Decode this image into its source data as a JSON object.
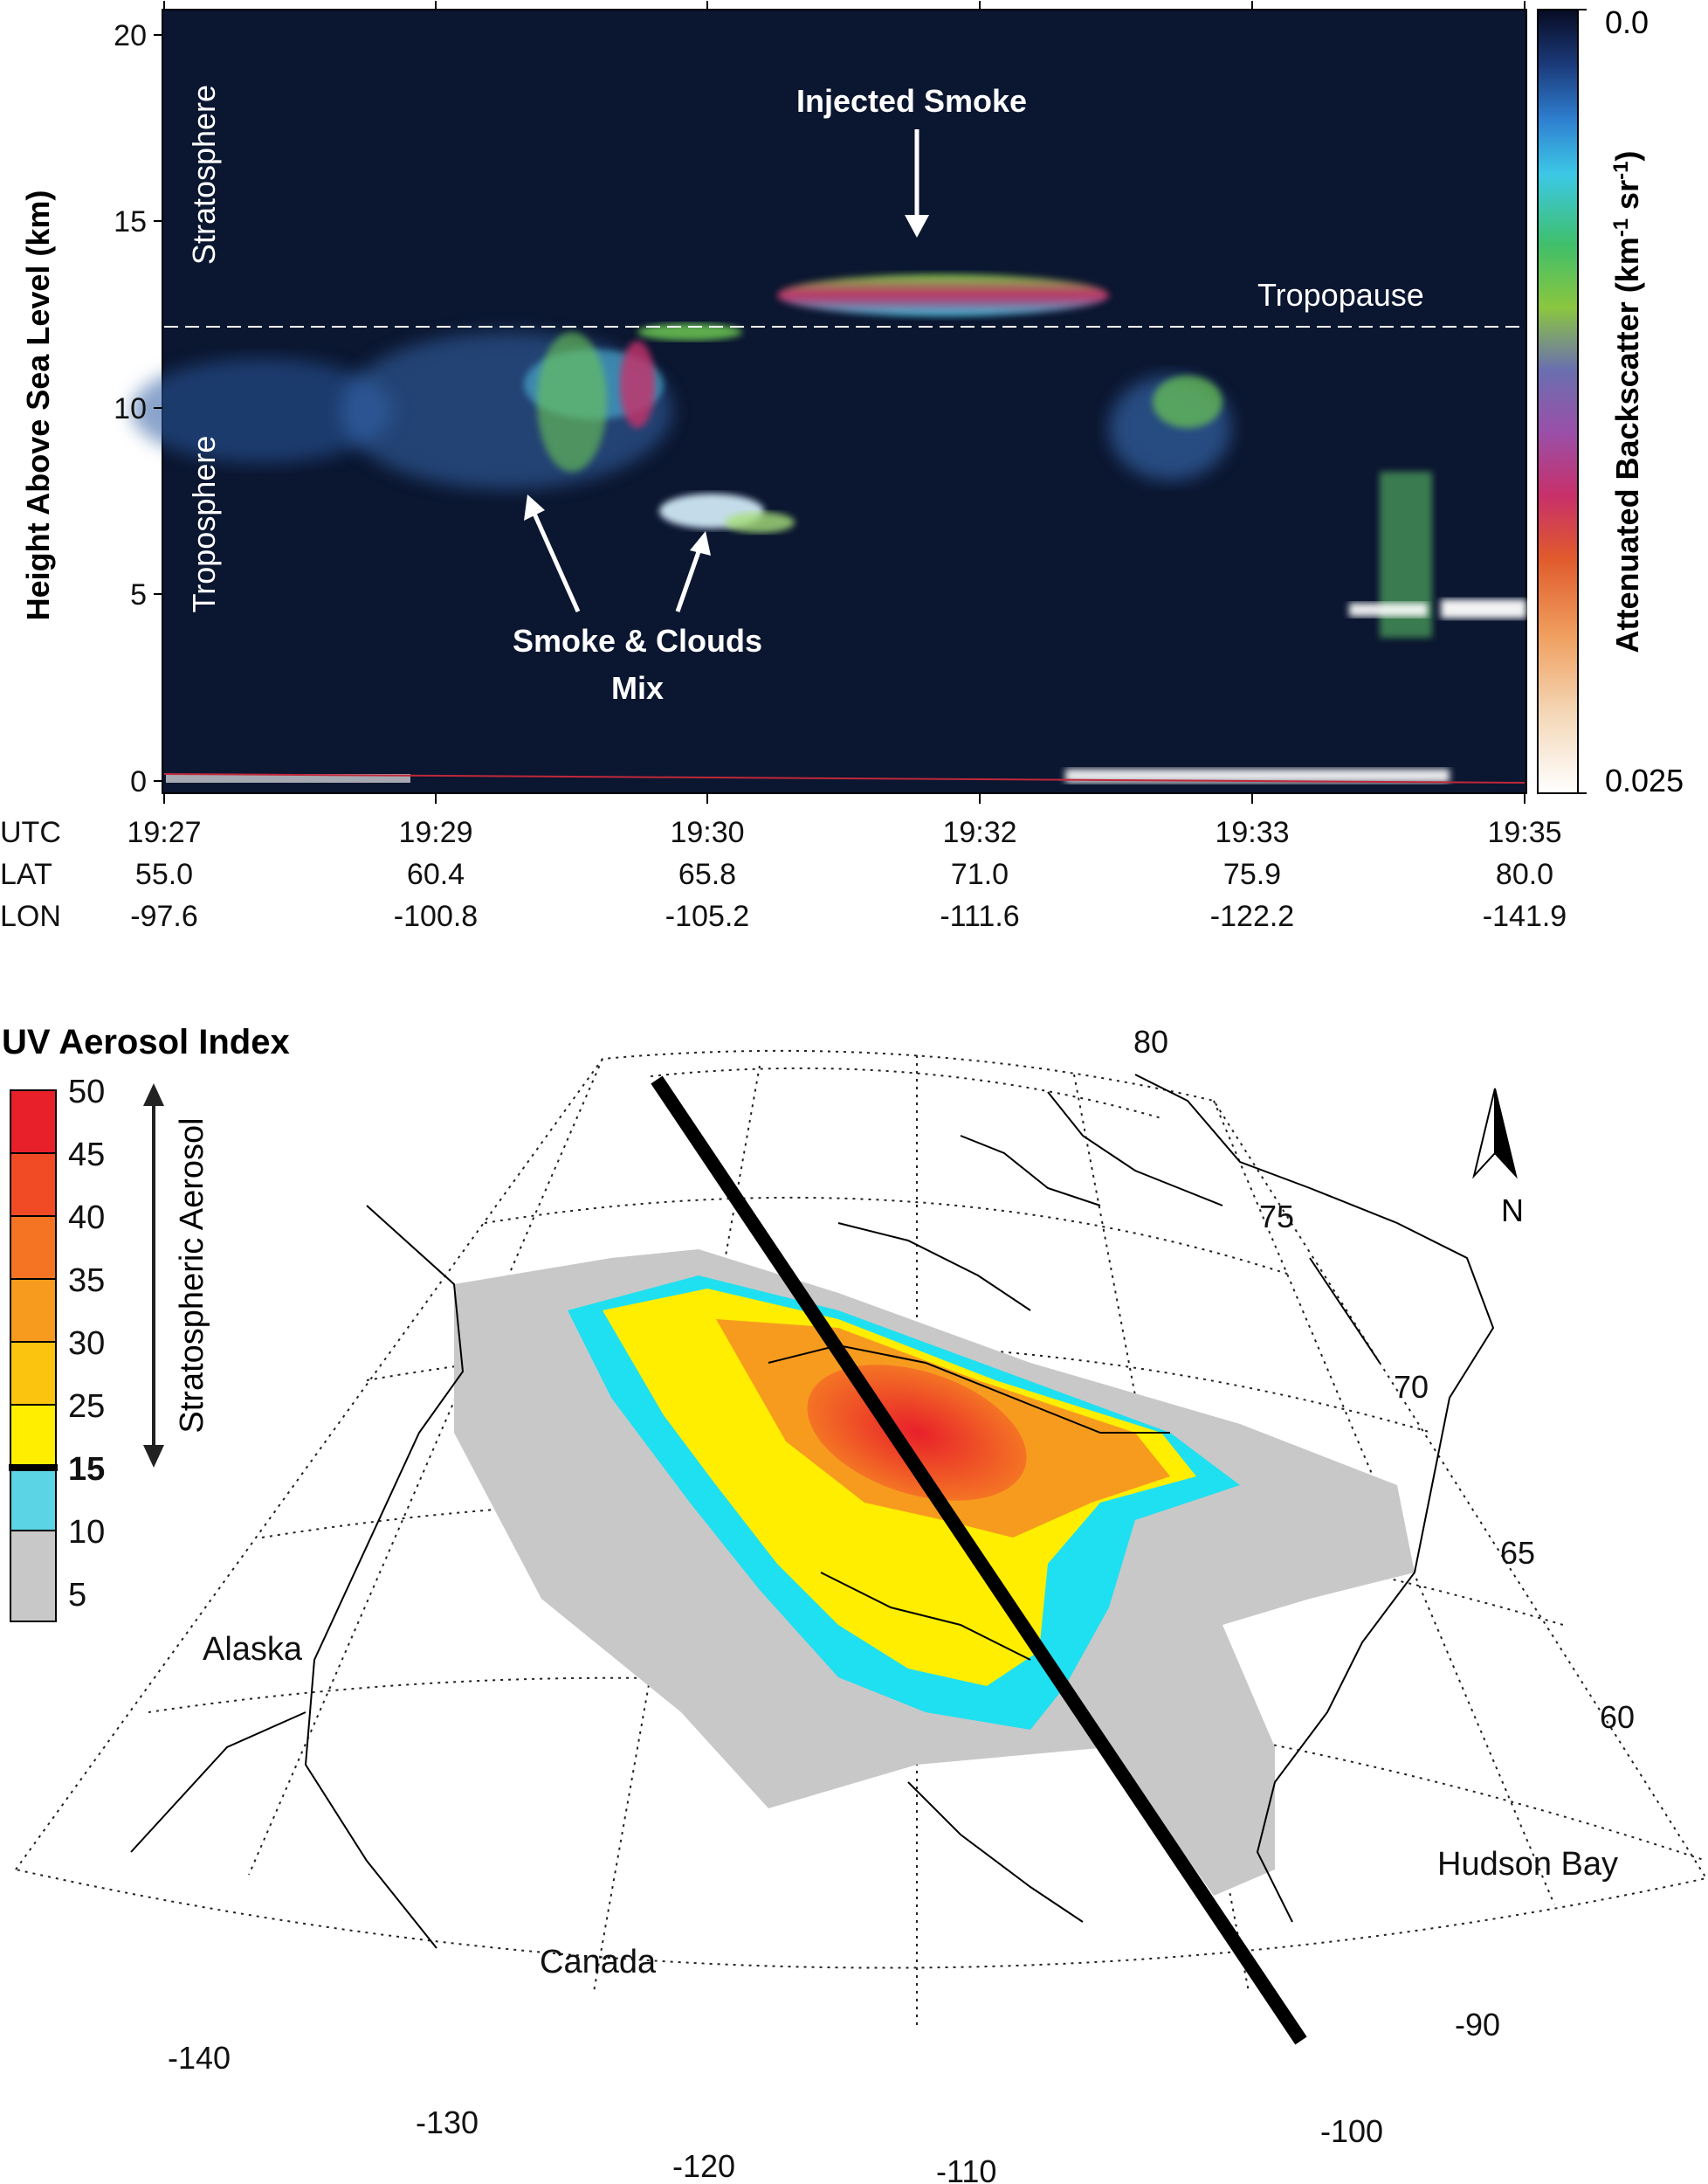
{
  "lidar": {
    "ylabel": "Height Above Sea Level (km)",
    "y_ticks": [
      "0",
      "5",
      "10",
      "15",
      "20"
    ],
    "colorbar_label": "Attenuated Backscatter (km",
    "colorbar_label_sup1": "-1",
    "colorbar_label_mid": " sr",
    "colorbar_label_sup2": "-1",
    "colorbar_label_end": ")",
    "colorbar_top": "0.0",
    "colorbar_bottom": "0.025",
    "label_stratosphere": "Stratosphere",
    "label_troposphere": "Troposphere",
    "label_tropopause": "Tropopause",
    "label_injected_smoke": "Injected Smoke",
    "label_smoke_mix_1": "Smoke & Clouds",
    "label_smoke_mix_2": "Mix",
    "row_labels": [
      "UTC",
      "LAT",
      "LON"
    ],
    "columns": [
      {
        "utc": "19:27",
        "lat": "55.0",
        "lon": "-97.6"
      },
      {
        "utc": "19:29",
        "lat": "60.4",
        "lon": "-100.8"
      },
      {
        "utc": "19:30",
        "lat": "65.8",
        "lon": "-105.2"
      },
      {
        "utc": "19:32",
        "lat": "71.0",
        "lon": "-111.6"
      },
      {
        "utc": "19:33",
        "lat": "75.9",
        "lon": "-122.2"
      },
      {
        "utc": "19:35",
        "lat": "80.0",
        "lon": "-141.9"
      }
    ],
    "colors": {
      "background": "#0b1630",
      "tropopause_line": "#ffffff",
      "surface_line": "#c0283a"
    }
  },
  "map": {
    "legend_title": "UV Aerosol Index",
    "legend_ticks": [
      "50",
      "45",
      "40",
      "35",
      "30",
      "25",
      "15",
      "10",
      "5"
    ],
    "legend_colors": [
      "#e8202a",
      "#f04b25",
      "#f47424",
      "#f79b1f",
      "#fbc40f",
      "#ffee00",
      "#5bd4e6",
      "#c8c8c8"
    ],
    "stratospheric_label": "Stratospheric Aerosol",
    "north_label": "N",
    "region_labels": {
      "alaska": "Alaska",
      "canada": "Canada",
      "hudson_bay": "Hudson Bay"
    },
    "lat_labels": [
      "80",
      "75",
      "70",
      "65",
      "60"
    ],
    "lon_labels": [
      "-140",
      "-130",
      "-120",
      "-110",
      "-100",
      "-90"
    ],
    "colors": {
      "track": "#000000",
      "gray": "#c8c8c8",
      "cyan": "#1fe0f0",
      "yellow": "#ffee00",
      "orange": "#f79b1f",
      "red": "#e8202a"
    }
  }
}
